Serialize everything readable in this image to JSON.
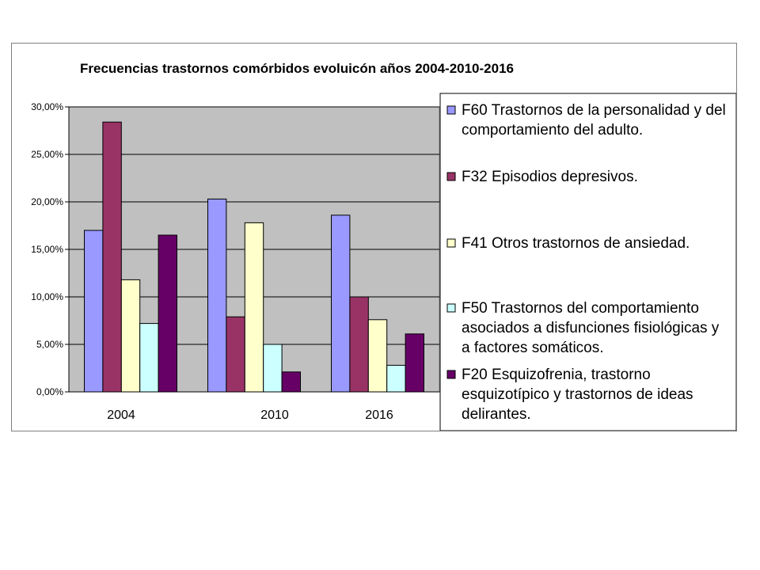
{
  "chart_data": {
    "type": "bar",
    "title": "Frecuencias trastornos comórbidos evoluicón años 2004-2010-2016",
    "xlabel": "",
    "ylabel": "",
    "categories": [
      "2004",
      "2010",
      "2016"
    ],
    "y_ticks": [
      "0,00%",
      "5,00%",
      "10,00%",
      "15,00%",
      "20,00%",
      "25,00%",
      "30,00%"
    ],
    "ylim": [
      0,
      30
    ],
    "grid": true,
    "legend_position": "right",
    "plot_background": "#c0c0c0",
    "series": [
      {
        "name": "F60 Trastornos de la personalidad y del comportamiento del adulto.",
        "legend_lines": [
          "F60 Trastornos de la personalidad y del",
          "comportamiento del adulto."
        ],
        "color": "#9999ff",
        "values": [
          17.0,
          20.3,
          18.6
        ]
      },
      {
        "name": "F32 Episodios depresivos.",
        "legend_lines": [
          "F32 Episodios depresivos."
        ],
        "color": "#993366",
        "values": [
          28.4,
          7.9,
          10.0
        ]
      },
      {
        "name": "F41 Otros trastornos de ansiedad.",
        "legend_lines": [
          "F41 Otros trastornos de ansiedad."
        ],
        "color": "#ffffcc",
        "values": [
          11.8,
          17.8,
          7.6
        ]
      },
      {
        "name": "F50 Trastornos del comportamiento asociados a disfunciones fisiológicas y a factores somáticos.",
        "legend_lines": [
          "F50 Trastornos del comportamiento",
          "asociados a disfunciones fisiológicas y",
          "a factores somáticos."
        ],
        "color": "#ccffff",
        "values": [
          7.2,
          5.0,
          2.8
        ]
      },
      {
        "name": "F20 Esquizofrenia, trastorno esquizotípico y trastornos de ideas delirantes.",
        "legend_lines": [
          "F20 Esquizofrenia, trastorno",
          "esquizotípico y trastornos de ideas",
          "delirantes."
        ],
        "color": "#660066",
        "values": [
          16.5,
          2.1,
          6.1
        ]
      }
    ]
  }
}
